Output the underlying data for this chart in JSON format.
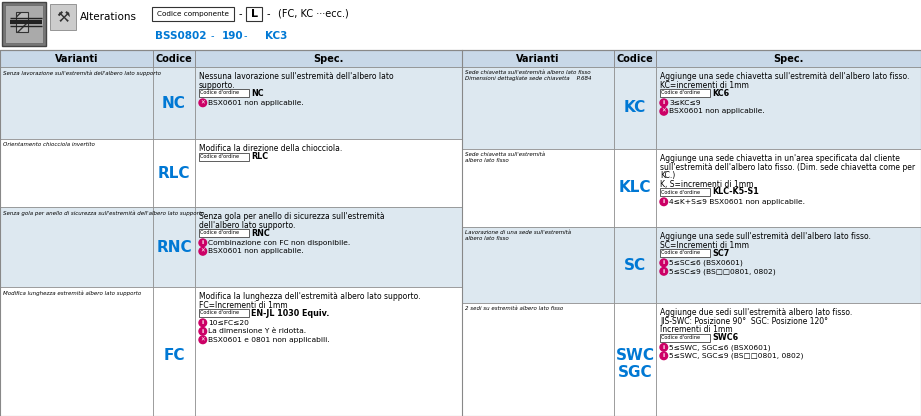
{
  "bg_color": "#dde8f0",
  "header_bg": "#c8d8e8",
  "white": "#ffffff",
  "blue_code": "#0078d4",
  "black": "#000000",
  "gray_border": "#888888",
  "fig_width": 9.21,
  "fig_height": 4.16,
  "left_table": {
    "rows": [
      {
        "variant_title": "Senza lavorazione sull'estremità dell'albero lato supporto",
        "code": "NC",
        "spec_lines": [
          "Nessuna lavorazione sull'estremità dell'albero lato",
          "supporto.",
          "CODICE_ORDINE NC",
          "WARN BSX0601 non applicabile."
        ]
      },
      {
        "variant_title": "Orientamento chiocciola invertito",
        "code": "RLC",
        "spec_lines": [
          "Modifica la direzione della chiocciola.",
          "CODICE_ORDINE RLC"
        ]
      },
      {
        "variant_title": "Senza gola per anello di sicurezza sull'estremità dell'albero lato supporto",
        "code": "RNC",
        "spec_lines": [
          "Senza gola per anello di sicurezza sull'estremità",
          "dell'albero lato supporto.",
          "CODICE_ORDINE RNC",
          "INFO Combinazione con FC non disponibile.",
          "WARN BSX0601 non applicabile."
        ]
      },
      {
        "variant_title": "Modifica lunghezza estremità albero lato supporto",
        "code": "FC",
        "spec_lines": [
          "Modifica la lunghezza dell'estremità albero lato supporto.",
          "FC=Incrementi di 1mm",
          "CODICE_ORDINE EN-JL 1030 Equiv.",
          "INFO 10≤FC≤20",
          "INFO La dimensione Y è ridotta.",
          "WARN BSX0601 e 0801 non applicabili."
        ]
      }
    ]
  },
  "right_table": {
    "rows": [
      {
        "variant_title": "Sede chiavetta sull'estremità albero lato fisso\nDimensioni dettagliate sede chiavetta    P.684",
        "code": "KC",
        "spec_lines": [
          "Aggiunge una sede chiavetta sull'estremità dell'albero lato fisso.",
          "KC=incrementi di 1mm",
          "CODICE_ORDINE KC6",
          "INFO 3≤KC≤9",
          "WARN BSX0601 non applicabile."
        ]
      },
      {
        "variant_title": "Sede chiavetta sull'estremità\nalbero lato fisso",
        "code": "KLC",
        "spec_lines": [
          "Aggiunge una sede chiavetta in un'area specificata dal cliente",
          "sull'estremità dell'albero lato fisso. (Dim. sede chiavetta come per",
          "KC.)",
          "K, S=incrementi di 1mm",
          "CODICE_ORDINE KLC-K5-S1",
          "INFO 4≤K+S≤9 BSX0601 non applicabile."
        ]
      },
      {
        "variant_title": "Lavorazione di una sede sull'estremità\nalbero lato fisso",
        "code": "SC",
        "spec_lines": [
          "Aggiunge una sede sull'estremità dell'albero lato fisso.",
          "SC=Incrementi di 1mm",
          "CODICE_ORDINE SC7",
          "INFO 5≤SC≤6 (BSX0601)",
          "INFO 5≤SC≤9 (BS□□0801, 0802)"
        ]
      },
      {
        "variant_title": "2 sedi su estremità albero lato fisso",
        "code": "SWC\nSGC",
        "spec_lines": [
          "Aggiunge due sedi sull'estremità albero lato fisso.",
          "JIS-SWC: Posizione 90°  SGC: Posizione 120°",
          "Incrementi di 1mm",
          "CODICE_ORDINE SWC6",
          "INFO 5≤SWC, SGC≤6 (BSX0601)",
          "INFO 5≤SWC, SGC≤9 (BS□□0801, 0802)"
        ]
      }
    ]
  }
}
